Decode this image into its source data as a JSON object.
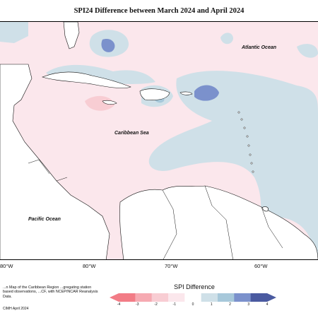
{
  "title": "SPI24 Difference between March 2024 and April 2024",
  "ocean_labels": {
    "atlantic": "Atlantic Ocean",
    "caribbean": "Caribbean Sea",
    "pacific": "Pacific Ocean"
  },
  "longitude_labels": [
    "80°W",
    "80°W",
    "70°W",
    "60°W"
  ],
  "note": "...n Map of the Caribbean Region ...gregating station based observations, ...CF, with NCEP/NCAR Reanalysis Data.",
  "credit": "CIMH April 2024",
  "legend": {
    "title": "SPI Difference",
    "ticks": [
      "-4",
      "-3",
      "-2",
      "-1",
      "0",
      "1",
      "2",
      "3",
      "4"
    ],
    "colors": [
      "#f27c86",
      "#f6aab2",
      "#f8cdd3",
      "#fbe7ec",
      "#ffffff",
      "#cfe0e8",
      "#a7c8da",
      "#7b91cc",
      "#4a5aa0"
    ]
  }
}
